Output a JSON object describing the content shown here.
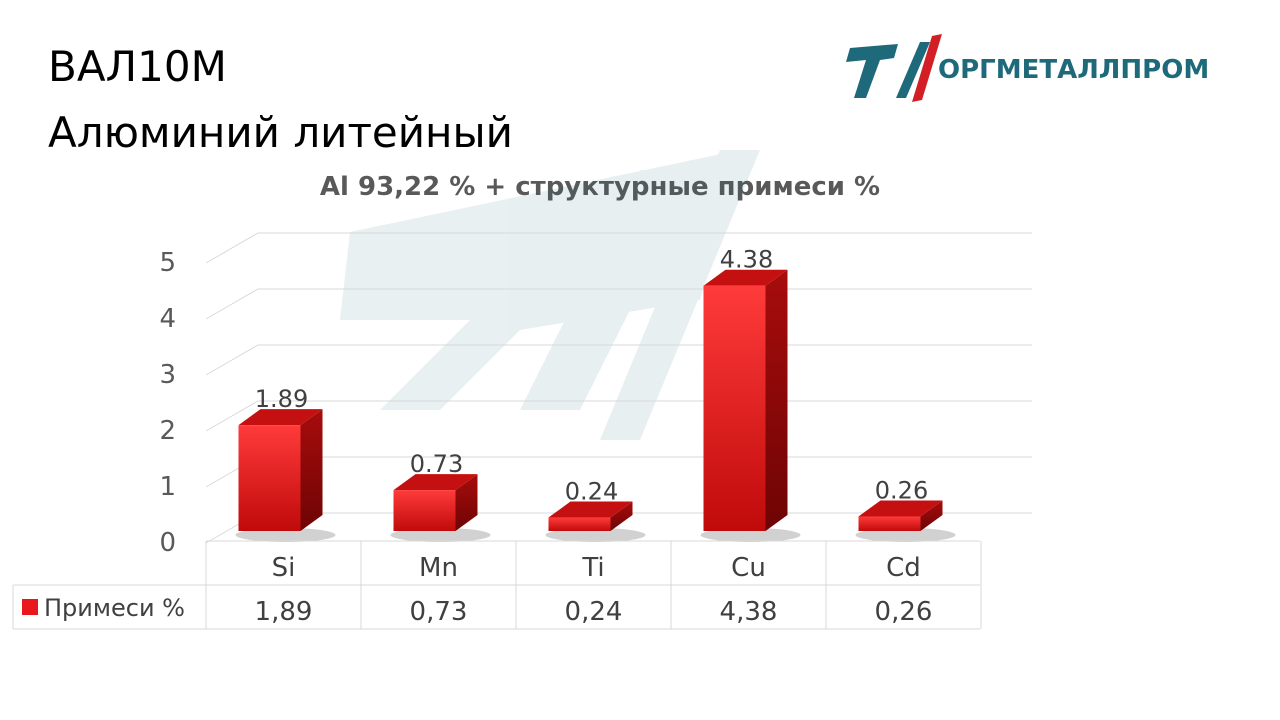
{
  "slide": {
    "title_line1": "ВАЛ10М",
    "title_line2": "Алюминий литейный"
  },
  "logo": {
    "text": "ОРГМЕТАЛЛПРОМ",
    "colors": {
      "teal": "#1e6a7a",
      "red": "#d21f26"
    }
  },
  "chart_data": {
    "type": "bar",
    "title": "Al 93,22 % + структурные примеси %",
    "categories": [
      "Si",
      "Mn",
      "Ti",
      "Cu",
      "Cd"
    ],
    "series": [
      {
        "name": "Примеси %",
        "values": [
          1.89,
          0.73,
          0.24,
          4.38,
          0.26
        ],
        "data_labels": [
          "1.89",
          "0.73",
          "0.24",
          "4.38",
          "0.26"
        ],
        "table_labels": [
          "1,89",
          "0,73",
          "0,24",
          "4,38",
          "0,26"
        ],
        "color": "#e8181c"
      }
    ],
    "ylim": [
      0,
      5
    ],
    "yticks": [
      0,
      1,
      2,
      3,
      4,
      5
    ],
    "grid": true,
    "legend": "data-table-left",
    "style": "3d-columns"
  }
}
